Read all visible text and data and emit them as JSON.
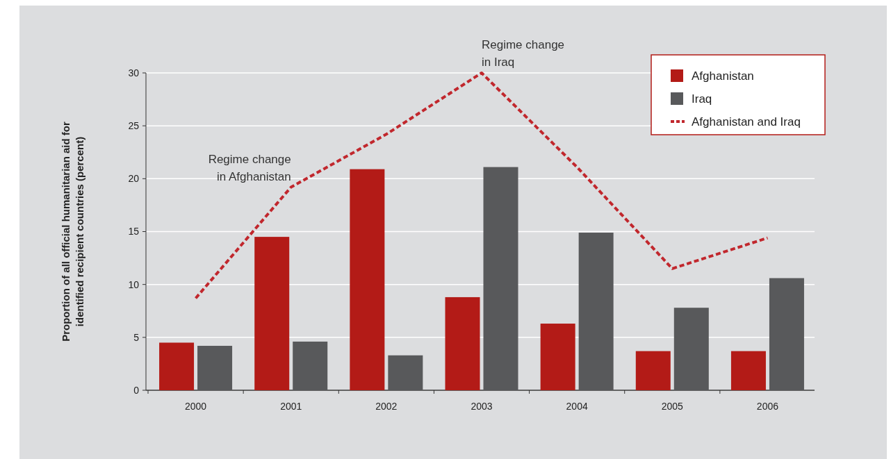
{
  "chart_data": {
    "type": "bar",
    "ylabel": "Proportion of all official humanitarian aid for identified recipient countries (percent)",
    "categories": [
      "2000",
      "2001",
      "2002",
      "2003",
      "2004",
      "2005",
      "2006"
    ],
    "series": [
      {
        "name": "Afghanistan",
        "color": "#b31b17",
        "values": [
          4.5,
          14.5,
          20.9,
          8.8,
          6.3,
          3.7,
          3.7
        ]
      },
      {
        "name": "Iraq",
        "color": "#58595b",
        "values": [
          4.2,
          4.6,
          3.3,
          21.1,
          14.9,
          7.8,
          10.6
        ]
      },
      {
        "name": "Afghanistan and Iraq",
        "type": "line",
        "color": "#c1272d",
        "line_style": "dashed",
        "values": [
          8.7,
          19.2,
          24.2,
          30,
          21.1,
          11.5,
          14.4
        ]
      }
    ],
    "ylim": [
      0,
      30
    ],
    "yticks": [
      0,
      5,
      10,
      15,
      20,
      25,
      30
    ],
    "grid": "y",
    "legend": "top right",
    "annotations": [
      {
        "text": "Regime change\nin Afghanistan",
        "x": "2001",
        "y": 19.2
      },
      {
        "text": "Regime change\nin Iraq",
        "x": "2003",
        "y": 30
      }
    ]
  }
}
